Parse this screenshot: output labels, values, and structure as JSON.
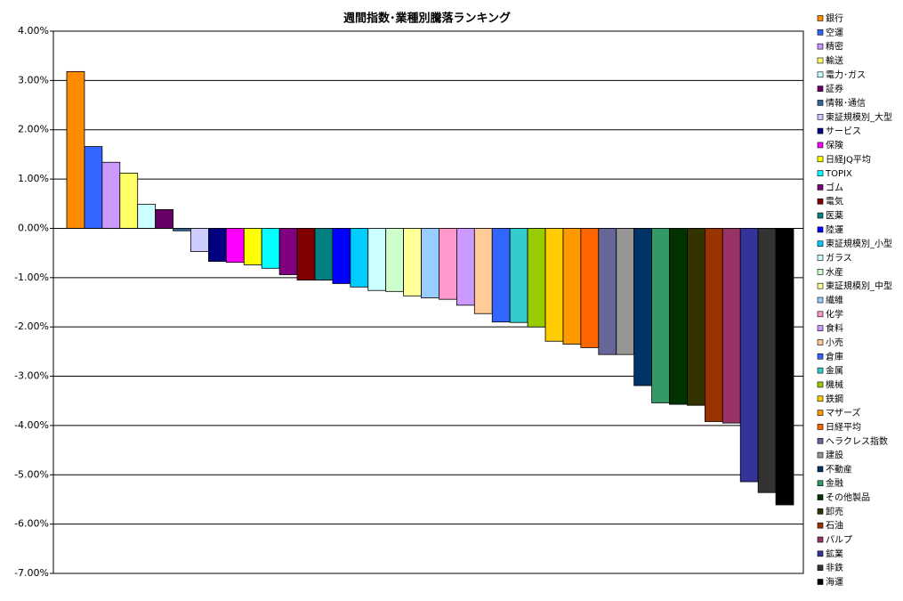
{
  "chart_data": {
    "type": "bar",
    "title": "週間指数･業種別騰落ランキング",
    "categories": [
      "銀行",
      "空運",
      "精密",
      "輸送",
      "電力･ガス",
      "証券",
      "情報･通信",
      "東証規模別_大型",
      "サービス",
      "保険",
      "日経JQ平均",
      "TOPIX",
      "ゴム",
      "電気",
      "医薬",
      "陸運",
      "東証規模別_小型",
      "ガラス",
      "水産",
      "東証規模別_中型",
      "繊維",
      "化学",
      "食料",
      "小売",
      "倉庫",
      "金属",
      "機械",
      "鉄鋼",
      "マザーズ",
      "日経平均",
      "ヘラクレス指数",
      "建設",
      "不動産",
      "金融",
      "その他製品",
      "卸売",
      "石油",
      "パルプ",
      "鉱業",
      "非鉄",
      "海運"
    ],
    "values": [
      3.18,
      1.66,
      1.34,
      1.12,
      0.49,
      0.38,
      -0.05,
      -0.47,
      -0.67,
      -0.69,
      -0.74,
      -0.81,
      -0.94,
      -1.05,
      -1.05,
      -1.12,
      -1.19,
      -1.26,
      -1.28,
      -1.37,
      -1.41,
      -1.44,
      -1.56,
      -1.73,
      -1.9,
      -1.91,
      -2.0,
      -2.29,
      -2.35,
      -2.42,
      -2.56,
      -2.56,
      -3.19,
      -3.54,
      -3.57,
      -3.59,
      -3.92,
      -3.95,
      -5.14,
      -5.36,
      -5.61
    ],
    "colors": [
      "#ff8c00",
      "#3366ff",
      "#cc99ff",
      "#ffff66",
      "#ccffff",
      "#660066",
      "#336699",
      "#ccccff",
      "#000080",
      "#ff00ff",
      "#ffff00",
      "#00ffff",
      "#800080",
      "#800000",
      "#008080",
      "#0000ff",
      "#00ccff",
      "#ccffff",
      "#ccffcc",
      "#ffff99",
      "#99ccff",
      "#ff99cc",
      "#cc99ff",
      "#ffcc99",
      "#3366ff",
      "#33cccc",
      "#99cc00",
      "#ffcc00",
      "#ff9900",
      "#ff6600",
      "#666699",
      "#969696",
      "#003366",
      "#339966",
      "#003300",
      "#333300",
      "#993300",
      "#993366",
      "#333399",
      "#333333",
      "#000000"
    ],
    "ylim": [
      -7,
      4
    ],
    "yticks": [
      {
        "value": -7,
        "label": "-7.00%"
      },
      {
        "value": -6,
        "label": "-6.00%"
      },
      {
        "value": -5,
        "label": "-5.00%"
      },
      {
        "value": -4,
        "label": "-4.00%"
      },
      {
        "value": -3,
        "label": "-3.00%"
      },
      {
        "value": -2,
        "label": "-2.00%"
      },
      {
        "value": -1,
        "label": "-1.00%"
      },
      {
        "value": 0,
        "label": "0.00%"
      },
      {
        "value": 1,
        "label": "1.00%"
      },
      {
        "value": 2,
        "label": "2.00%"
      },
      {
        "value": 3,
        "label": "3.00%"
      },
      {
        "value": 4,
        "label": "4.00%"
      }
    ],
    "grid": true
  }
}
